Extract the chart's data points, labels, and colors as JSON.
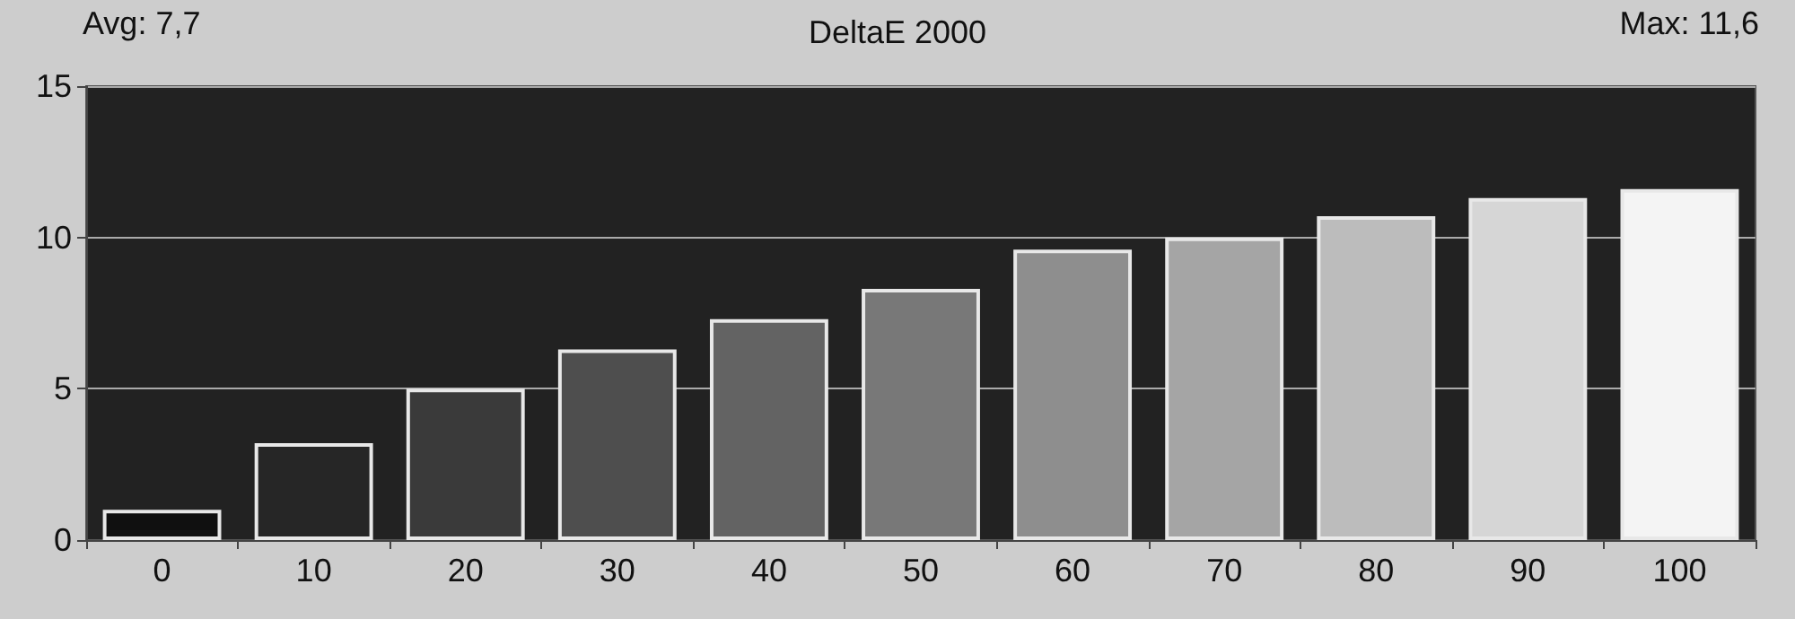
{
  "chart_data": {
    "type": "bar",
    "title": "DeltaE 2000",
    "annotations": [
      "Avg: 7,7",
      "Max: 11,6"
    ],
    "categories": [
      "0",
      "10",
      "20",
      "30",
      "40",
      "50",
      "60",
      "70",
      "80",
      "90",
      "100"
    ],
    "values": [
      1.0,
      3.2,
      5.0,
      6.3,
      7.3,
      8.3,
      9.6,
      10.0,
      10.7,
      11.3,
      11.6
    ],
    "colors": [
      "#101010",
      "#262626",
      "#3a3a3a",
      "#4e4e4e",
      "#636363",
      "#787878",
      "#8e8e8e",
      "#a5a5a5",
      "#bcbcbc",
      "#d6d6d6",
      "#f4f4f4"
    ],
    "ylim": [
      0,
      15
    ],
    "yticks": [
      0,
      5,
      10,
      15
    ],
    "grid": "y"
  }
}
